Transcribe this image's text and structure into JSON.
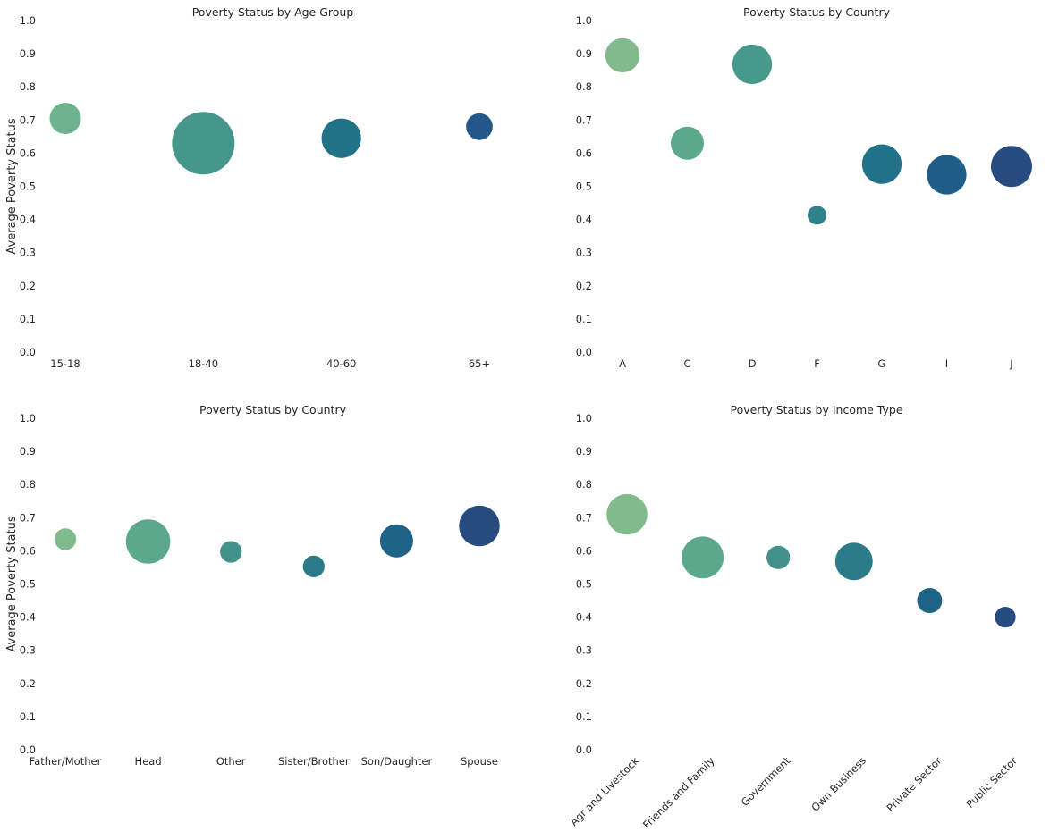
{
  "chart_data": [
    {
      "type": "scatter",
      "title": "Poverty Status by Age Group",
      "xlabel": "",
      "ylabel": "Average Poverty Status",
      "ylim": [
        0,
        1.0
      ],
      "yticks": [
        "0.0",
        "0.1",
        "0.2",
        "0.3",
        "0.4",
        "0.5",
        "0.6",
        "0.7",
        "0.8",
        "0.9",
        "1.0"
      ],
      "grid": false,
      "categories": [
        "15-18",
        "18-40",
        "40-60",
        "65+"
      ],
      "values": [
        0.705,
        0.63,
        0.645,
        0.68
      ],
      "sizes": [
        25,
        100,
        40,
        18
      ],
      "colors": [
        "#6db38f",
        "#45978c",
        "#207286",
        "#23578a"
      ]
    },
    {
      "type": "scatter",
      "title": "Poverty Status by Country",
      "xlabel": "",
      "ylabel": "",
      "ylim": [
        0,
        1.0
      ],
      "yticks": [
        "0.0",
        "0.1",
        "0.2",
        "0.3",
        "0.4",
        "0.5",
        "0.6",
        "0.7",
        "0.8",
        "0.9",
        "1.0"
      ],
      "grid": false,
      "categories": [
        "A",
        "C",
        "D",
        "F",
        "G",
        "I",
        "J"
      ],
      "values": [
        0.895,
        0.63,
        0.868,
        0.413,
        0.567,
        0.535,
        0.56
      ],
      "sizes": [
        30,
        28,
        40,
        9,
        40,
        40,
        43
      ],
      "colors": [
        "#80ba8d",
        "#5ca88c",
        "#47998b",
        "#2f828a",
        "#217289",
        "#1e5d88",
        "#274a7f"
      ]
    },
    {
      "type": "scatter",
      "title": "Poverty Status by Country",
      "xlabel": "",
      "ylabel": "Average Poverty Status",
      "ylim": [
        0,
        1.0
      ],
      "yticks": [
        "0.0",
        "0.1",
        "0.2",
        "0.3",
        "0.4",
        "0.5",
        "0.6",
        "0.7",
        "0.8",
        "0.9",
        "1.0"
      ],
      "grid": false,
      "categories": [
        "Father/Mother",
        "Head",
        "Other",
        "Sister/Brother",
        "Son/Daughter",
        "Spouse"
      ],
      "values": [
        0.635,
        0.628,
        0.597,
        0.553,
        0.63,
        0.675
      ],
      "sizes": [
        12,
        50,
        12,
        12,
        28,
        42
      ],
      "colors": [
        "#80ba8d",
        "#5ca88c",
        "#43918b",
        "#2b7b89",
        "#1e6388",
        "#274a7f"
      ]
    },
    {
      "type": "scatter",
      "title": "Poverty Status by Income Type",
      "xlabel": "",
      "ylabel": "",
      "ylim": [
        0,
        1.0
      ],
      "yticks": [
        "0.0",
        "0.1",
        "0.2",
        "0.3",
        "0.4",
        "0.5",
        "0.6",
        "0.7",
        "0.8",
        "0.9",
        "1.0"
      ],
      "grid": false,
      "categories": [
        "Agr and Livestock",
        "Friends and Family",
        "Government",
        "Own Business",
        "Private Sector",
        "Public Sector"
      ],
      "values": [
        0.71,
        0.58,
        0.58,
        0.568,
        0.45,
        0.4
      ],
      "sizes": [
        42,
        45,
        14,
        36,
        16,
        11
      ],
      "colors": [
        "#80ba8d",
        "#5ca88c",
        "#43918b",
        "#2b7b89",
        "#1e6388",
        "#274a7f"
      ],
      "xtick_rotation": -45
    }
  ]
}
